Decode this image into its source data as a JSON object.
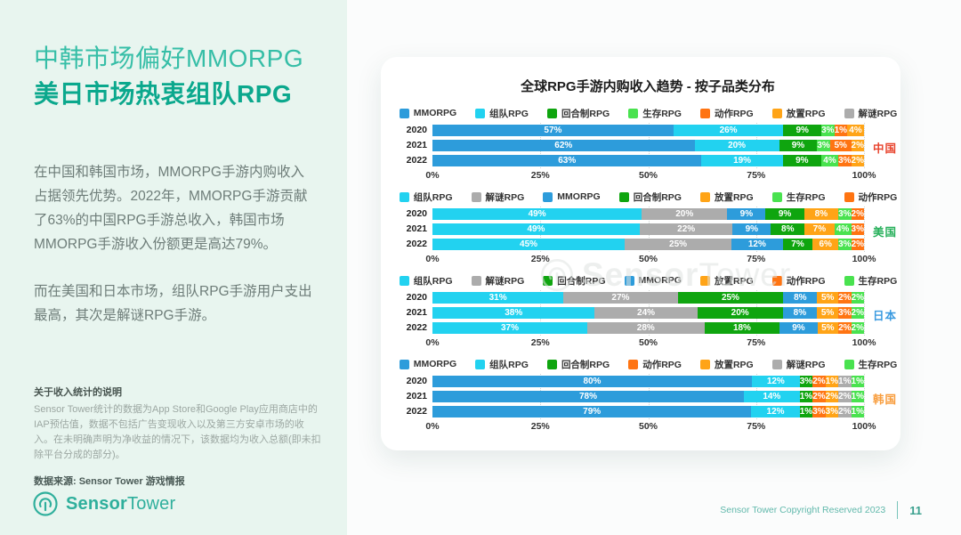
{
  "sidebar": {
    "title_line1": "中韩市场偏好MMORPG",
    "title_line2": "美日市场热衷组队RPG",
    "paragraph1": "在中国和韩国市场，MMORPG手游内购收入占据领先优势。2022年，MMORPG手游贡献了63%的中国RPG手游总收入，韩国市场MMORPG手游收入份额更是高达79%。",
    "paragraph2": "而在美国和日本市场，组队RPG手游用户支出最高，其次是解谜RPG手游。",
    "note_title": "关于收入统计的说明",
    "note_body": "Sensor Tower统计的数据为App Store和Google Play应用商店中的IAP预估值，数据不包括广告变现收入以及第三方安卓市场的收入。在未明确声明为净收益的情况下，该数据均为收入总额(即未扣除平台分成的部分)。",
    "note_source": "数据来源: Sensor Tower 游戏情报",
    "logo_bold": "Sensor",
    "logo_light": "Tower"
  },
  "card": {
    "title": "全球RPG手游内购收入趋势 - 按子品类分布",
    "watermark_bold": "Sensor",
    "watermark_light": "Tower"
  },
  "footer": {
    "copyright": "Sensor Tower Copyright Reserved 2023",
    "page_number": "11"
  },
  "category_colors": {
    "MMORPG": "#2d9cdb",
    "组队RPG": "#22d2f0",
    "回合制RPG": "#0fa50f",
    "生存RPG": "#49e24f",
    "动作RPG": "#ff7412",
    "放置RPG": "#ffa417",
    "解谜RPG": "#acacac"
  },
  "chart_data": [
    {
      "type": "bar",
      "country": "中国",
      "country_color": "#e8442e",
      "legend": [
        "MMORPG",
        "组队RPG",
        "回合制RPG",
        "生存RPG",
        "动作RPG",
        "放置RPG",
        "解谜RPG"
      ],
      "x_ticks": [
        "0%",
        "25%",
        "50%",
        "75%",
        "100%"
      ],
      "xlim": [
        0,
        100
      ],
      "series": [
        {
          "year": "2020",
          "values": [
            57,
            26,
            9,
            3,
            1,
            4,
            0
          ]
        },
        {
          "year": "2021",
          "values": [
            62,
            20,
            9,
            3,
            5,
            2,
            0
          ]
        },
        {
          "year": "2022",
          "values": [
            63,
            19,
            9,
            4,
            3,
            2,
            0
          ]
        }
      ]
    },
    {
      "type": "bar",
      "country": "美国",
      "country_color": "#27b05b",
      "legend": [
        "组队RPG",
        "解谜RPG",
        "MMORPG",
        "回合制RPG",
        "放置RPG",
        "生存RPG",
        "动作RPG"
      ],
      "x_ticks": [
        "0%",
        "25%",
        "50%",
        "75%",
        "100%"
      ],
      "xlim": [
        0,
        100
      ],
      "series": [
        {
          "year": "2020",
          "values": [
            49,
            20,
            9,
            9,
            8,
            3,
            2
          ]
        },
        {
          "year": "2021",
          "values": [
            49,
            22,
            9,
            8,
            7,
            4,
            3
          ]
        },
        {
          "year": "2022",
          "values": [
            45,
            25,
            12,
            7,
            6,
            3,
            2
          ]
        }
      ]
    },
    {
      "type": "bar",
      "country": "日本",
      "country_color": "#3b9be0",
      "legend": [
        "组队RPG",
        "解谜RPG",
        "回合制RPG",
        "MMORPG",
        "放置RPG",
        "动作RPG",
        "生存RPG"
      ],
      "x_ticks": [
        "0%",
        "25%",
        "50%",
        "75%",
        "100%"
      ],
      "xlim": [
        0,
        100
      ],
      "series": [
        {
          "year": "2020",
          "values": [
            31,
            27,
            25,
            8,
            5,
            2,
            2
          ]
        },
        {
          "year": "2021",
          "values": [
            38,
            24,
            20,
            8,
            5,
            3,
            2
          ]
        },
        {
          "year": "2022",
          "values": [
            37,
            28,
            18,
            9,
            5,
            2,
            2
          ]
        }
      ]
    },
    {
      "type": "bar",
      "country": "韩国",
      "country_color": "#f89d3d",
      "legend": [
        "MMORPG",
        "组队RPG",
        "回合制RPG",
        "动作RPG",
        "放置RPG",
        "解谜RPG",
        "生存RPG"
      ],
      "x_ticks": [
        "0%",
        "25%",
        "50%",
        "75%",
        "100%"
      ],
      "xlim": [
        0,
        100
      ],
      "series": [
        {
          "year": "2020",
          "values": [
            80,
            12,
            3,
            2,
            1,
            1,
            1
          ]
        },
        {
          "year": "2021",
          "values": [
            78,
            14,
            1,
            2,
            2,
            2,
            1
          ]
        },
        {
          "year": "2022",
          "values": [
            79,
            12,
            1,
            3,
            3,
            2,
            1
          ]
        }
      ]
    }
  ]
}
